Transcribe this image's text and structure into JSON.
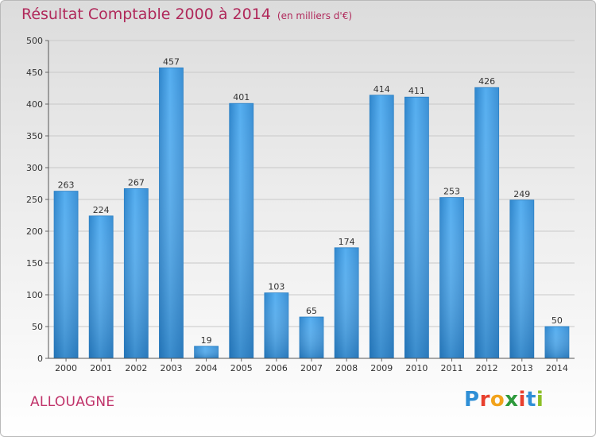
{
  "header": {
    "title": "Résultat Comptable 2000 à 2014",
    "subtitle": "(en milliers d'€)"
  },
  "footer": {
    "commune": "ALLOUAGNE",
    "logo_letters": [
      "P",
      "r",
      "o",
      "x",
      "i",
      "t",
      "i"
    ],
    "logo_colors": [
      "#2f8fd6",
      "#e8402e",
      "#f2a31b",
      "#2e9a3c",
      "#e8402e",
      "#2f8fd6",
      "#8cbf26"
    ]
  },
  "chart_data": {
    "type": "bar",
    "title": "Résultat Comptable 2000 à 2014",
    "subtitle": "(en milliers d'€)",
    "categories": [
      "2000",
      "2001",
      "2002",
      "2003",
      "2004",
      "2005",
      "2006",
      "2007",
      "2008",
      "2009",
      "2010",
      "2011",
      "2012",
      "2013",
      "2014"
    ],
    "values": [
      263,
      224,
      267,
      457,
      19,
      401,
      103,
      65,
      174,
      414,
      411,
      253,
      426,
      249,
      50
    ],
    "ylim": [
      0,
      500
    ],
    "yticks": [
      0,
      50,
      100,
      150,
      200,
      250,
      300,
      350,
      400,
      450,
      500
    ],
    "grid": true,
    "bar_color": "#3d97d9"
  }
}
